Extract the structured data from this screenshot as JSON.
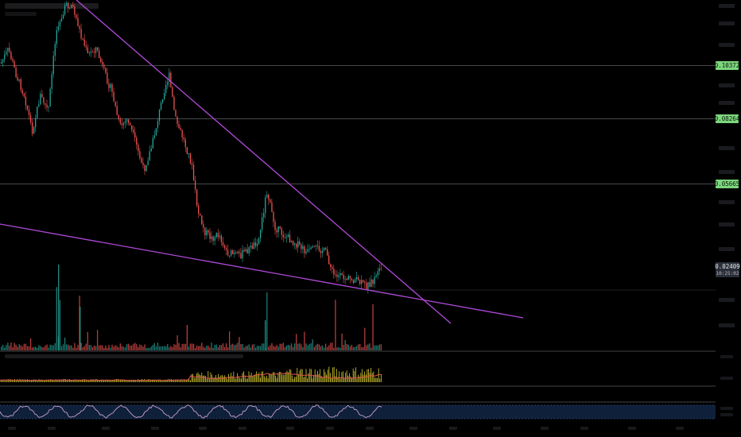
{
  "chart_data": {
    "type": "candlestick",
    "price_axis": {
      "scale": "log",
      "levels": [
        {
          "label": "0.10372",
          "value": 0.10372
        },
        {
          "label": "0.08264",
          "value": 0.08264
        },
        {
          "label": "0.05665",
          "value": 0.05665
        }
      ],
      "last_price": {
        "label": "0.02409",
        "value": 0.02409
      },
      "countdown": "10:25:02"
    },
    "trendlines": [
      {
        "name": "upper-resistance",
        "color": "#b04ad8"
      },
      {
        "name": "lower-support",
        "color": "#b04ad8"
      }
    ],
    "colors": {
      "background": "#000000",
      "up": "#26a69a",
      "down": "#ef5350",
      "level_tag": "#7dd67d",
      "price_tag": "#2a2e39",
      "indicator_yellow": "#e3d935",
      "indicator_red": "#e0574b",
      "stoch_band": "#1b3a6b",
      "stoch_line": "#c8a0c8"
    }
  }
}
